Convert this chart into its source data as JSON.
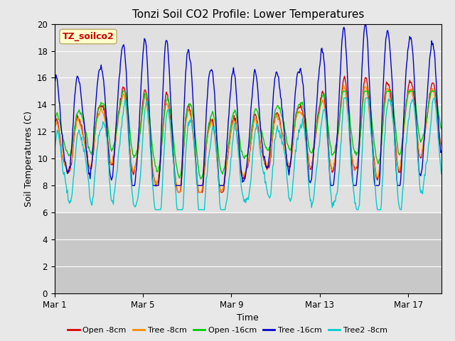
{
  "title": "Tonzi Soil CO2 Profile: Lower Temperatures",
  "xlabel": "Time",
  "ylabel": "Soil Temperatures (C)",
  "ylim": [
    0,
    20
  ],
  "yticks": [
    0,
    2,
    4,
    6,
    8,
    10,
    12,
    14,
    16,
    18,
    20
  ],
  "xtick_labels": [
    "Mar 1",
    "Mar 5",
    "Mar 9",
    "Mar 13",
    "Mar 17"
  ],
  "xtick_positions": [
    0,
    4,
    8,
    12,
    16
  ],
  "fig_bg_color": "#e8e8e8",
  "plot_bg_color": "#e0e0e0",
  "legend_entries": [
    "Open -8cm",
    "Tree -8cm",
    "Open -16cm",
    "Tree -16cm",
    "Tree2 -8cm"
  ],
  "line_colors": [
    "#dd0000",
    "#ff8800",
    "#00cc00",
    "#0000cc",
    "#00cccc"
  ],
  "watermark_text": "TZ_soilco2",
  "watermark_fg": "#cc0000",
  "watermark_bg": "#ffffcc",
  "title_fontsize": 11,
  "label_fontsize": 9,
  "tick_fontsize": 8.5,
  "legend_fontsize": 8
}
